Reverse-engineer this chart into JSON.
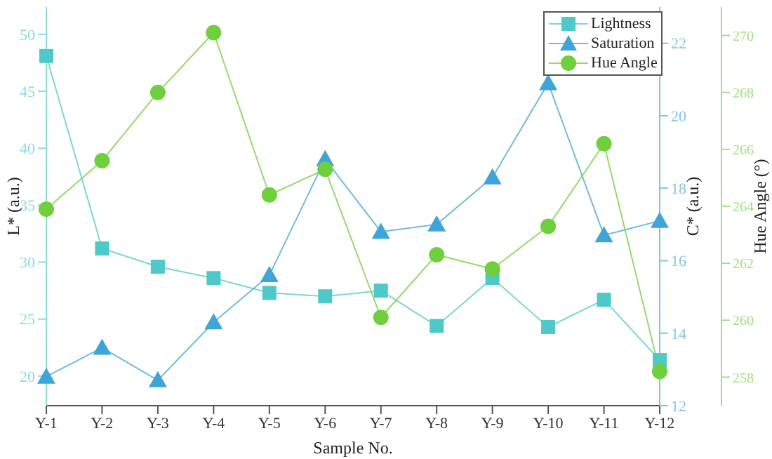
{
  "chart_data": {
    "type": "line",
    "xlabel": "Sample No.",
    "ylabel": "L* (a.u.)",
    "y2label": "C* (a.u.)",
    "y3label": "Hue Angle (°)",
    "categories": [
      "Y-1",
      "Y-2",
      "Y-3",
      "Y-4",
      "Y-5",
      "Y-6",
      "Y-7",
      "Y-8",
      "Y-9",
      "Y-10",
      "Y-11",
      "Y-12"
    ],
    "ylim": [
      17.4,
      52.4
    ],
    "yticks": [
      20,
      25,
      30,
      35,
      40,
      45,
      50
    ],
    "y2lim": [
      12,
      23
    ],
    "y2ticks": [
      12,
      14,
      16,
      18,
      20,
      22
    ],
    "y3lim": [
      257,
      271
    ],
    "y3ticks": [
      258,
      260,
      262,
      264,
      266,
      268,
      270
    ],
    "legend": "top right",
    "grid": false,
    "series": [
      {
        "name": "Lightness",
        "color": "#4fc8c8",
        "marker": "square",
        "values": [
          48.1,
          31.2,
          29.6,
          28.6,
          27.3,
          27.0,
          27.5,
          24.4,
          28.6,
          24.3,
          26.7,
          21.4
        ]
      },
      {
        "name": "Saturation",
        "color": "#3fa4d8",
        "marker": "triangle",
        "axis": "y2",
        "values": [
          12.8,
          13.6,
          12.7,
          14.3,
          15.6,
          18.8,
          16.8,
          17.0,
          18.3,
          20.9,
          16.7,
          17.1
        ]
      },
      {
        "name": "Hue Angle",
        "color": "#6fcf3c",
        "marker": "circle",
        "axis": "y3",
        "values": [
          263.9,
          265.6,
          268.0,
          270.1,
          264.4,
          265.3,
          260.1,
          262.3,
          261.8,
          263.3,
          266.2,
          258.2
        ]
      }
    ]
  }
}
